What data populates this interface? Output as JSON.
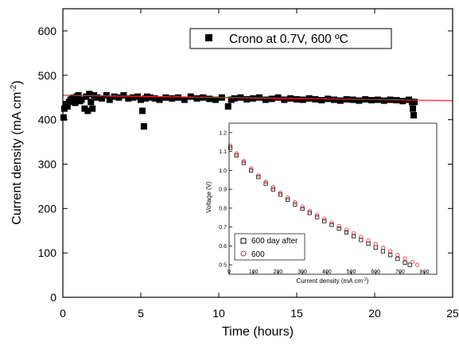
{
  "chart_data": [
    {
      "type": "scatter",
      "title": "",
      "xlabel": "Time (hours)",
      "ylabel_main": "Current density (mA cm",
      "ylabel_sup": "-2",
      "ylabel_close": ")",
      "xlim": [
        0,
        25
      ],
      "ylim": [
        0,
        650
      ],
      "xticks": [
        0,
        5,
        10,
        15,
        20,
        25
      ],
      "yticks": [
        0,
        100,
        200,
        300,
        400,
        500,
        600
      ],
      "grid": false,
      "legend_position": "top-center",
      "series": [
        {
          "name": "Crono at 0.7V, 600 ºC",
          "color": "#000000",
          "marker": "filled-square",
          "x": [
            0.05,
            0.1,
            0.2,
            0.3,
            0.4,
            0.5,
            0.6,
            0.7,
            0.8,
            0.9,
            1.0,
            1.1,
            1.2,
            1.4,
            1.5,
            1.6,
            1.7,
            1.8,
            1.9,
            2.0,
            2.2,
            2.5,
            2.8,
            3.0,
            3.3,
            3.6,
            3.9,
            4.2,
            4.5,
            4.8,
            5.0,
            5.1,
            5.2,
            5.3,
            5.4,
            5.6,
            5.9,
            6.2,
            6.6,
            7.0,
            7.4,
            7.8,
            8.2,
            8.6,
            9.0,
            9.4,
            9.8,
            10.2,
            10.6,
            10.8,
            11.0,
            11.4,
            11.8,
            12.2,
            12.6,
            13.0,
            13.4,
            13.8,
            14.2,
            14.6,
            15.0,
            15.4,
            15.8,
            16.2,
            16.6,
            17.0,
            17.4,
            17.8,
            18.2,
            18.6,
            19.0,
            19.4,
            19.8,
            20.2,
            20.6,
            21.0,
            21.4,
            21.8,
            22.2,
            22.4,
            22.45,
            22.5,
            22.55
          ],
          "y": [
            405,
            425,
            435,
            430,
            440,
            445,
            448,
            450,
            438,
            452,
            455,
            442,
            445,
            425,
            452,
            420,
            458,
            440,
            425,
            455,
            450,
            448,
            455,
            445,
            452,
            450,
            455,
            448,
            450,
            452,
            445,
            420,
            385,
            448,
            452,
            450,
            448,
            445,
            450,
            448,
            450,
            445,
            452,
            448,
            450,
            447,
            445,
            450,
            430,
            445,
            448,
            450,
            446,
            448,
            450,
            445,
            447,
            450,
            445,
            448,
            446,
            445,
            448,
            446,
            444,
            447,
            445,
            443,
            446,
            445,
            443,
            446,
            444,
            445,
            443,
            445,
            444,
            442,
            445,
            440,
            425,
            410,
            440
          ]
        },
        {
          "name": "fit",
          "color": "#e32b2b",
          "marker": "line",
          "x": [
            0,
            25
          ],
          "y": [
            455,
            443
          ]
        }
      ]
    },
    {
      "type": "scatter",
      "title": "",
      "xlabel_main": "Current density (mA cm",
      "xlabel_sup": "-2",
      "xlabel_close": ")",
      "ylabel": "Voltage (V)",
      "xlim": [
        0,
        850
      ],
      "ylim": [
        0.45,
        1.25
      ],
      "xticks": [
        0,
        100,
        200,
        300,
        400,
        500,
        600,
        700,
        800
      ],
      "yticks": [
        0.5,
        0.6,
        0.7,
        0.8,
        0.9,
        1.0,
        1.1,
        1.2
      ],
      "ytick_labels": [
        "0.5",
        "0.6",
        "0.7",
        "0.8",
        "0.9",
        "1.0",
        "1.1",
        "1.2"
      ],
      "grid": false,
      "legend_position": "bottom-left",
      "series": [
        {
          "name": "600 day after",
          "color": "#000000",
          "marker": "open-square",
          "x": [
            5,
            30,
            60,
            90,
            120,
            150,
            180,
            210,
            240,
            270,
            300,
            330,
            360,
            390,
            420,
            450,
            480,
            510,
            540,
            570,
            600,
            630,
            660,
            690,
            720,
            740
          ],
          "y": [
            1.12,
            1.08,
            1.04,
            1.0,
            0.965,
            0.93,
            0.9,
            0.872,
            0.845,
            0.82,
            0.797,
            0.775,
            0.753,
            0.732,
            0.712,
            0.692,
            0.672,
            0.652,
            0.632,
            0.612,
            0.592,
            0.572,
            0.552,
            0.532,
            0.512,
            0.5
          ]
        },
        {
          "name": "600",
          "color": "#e32b2b",
          "marker": "open-circle",
          "x": [
            5,
            30,
            60,
            90,
            120,
            150,
            180,
            210,
            240,
            270,
            300,
            330,
            360,
            390,
            420,
            450,
            480,
            510,
            540,
            570,
            600,
            630,
            660,
            690,
            720,
            750,
            770
          ],
          "y": [
            1.13,
            1.09,
            1.05,
            1.01,
            0.975,
            0.94,
            0.91,
            0.882,
            0.856,
            0.831,
            0.808,
            0.786,
            0.765,
            0.744,
            0.724,
            0.705,
            0.686,
            0.667,
            0.648,
            0.629,
            0.61,
            0.591,
            0.572,
            0.553,
            0.534,
            0.515,
            0.5
          ]
        }
      ]
    }
  ]
}
